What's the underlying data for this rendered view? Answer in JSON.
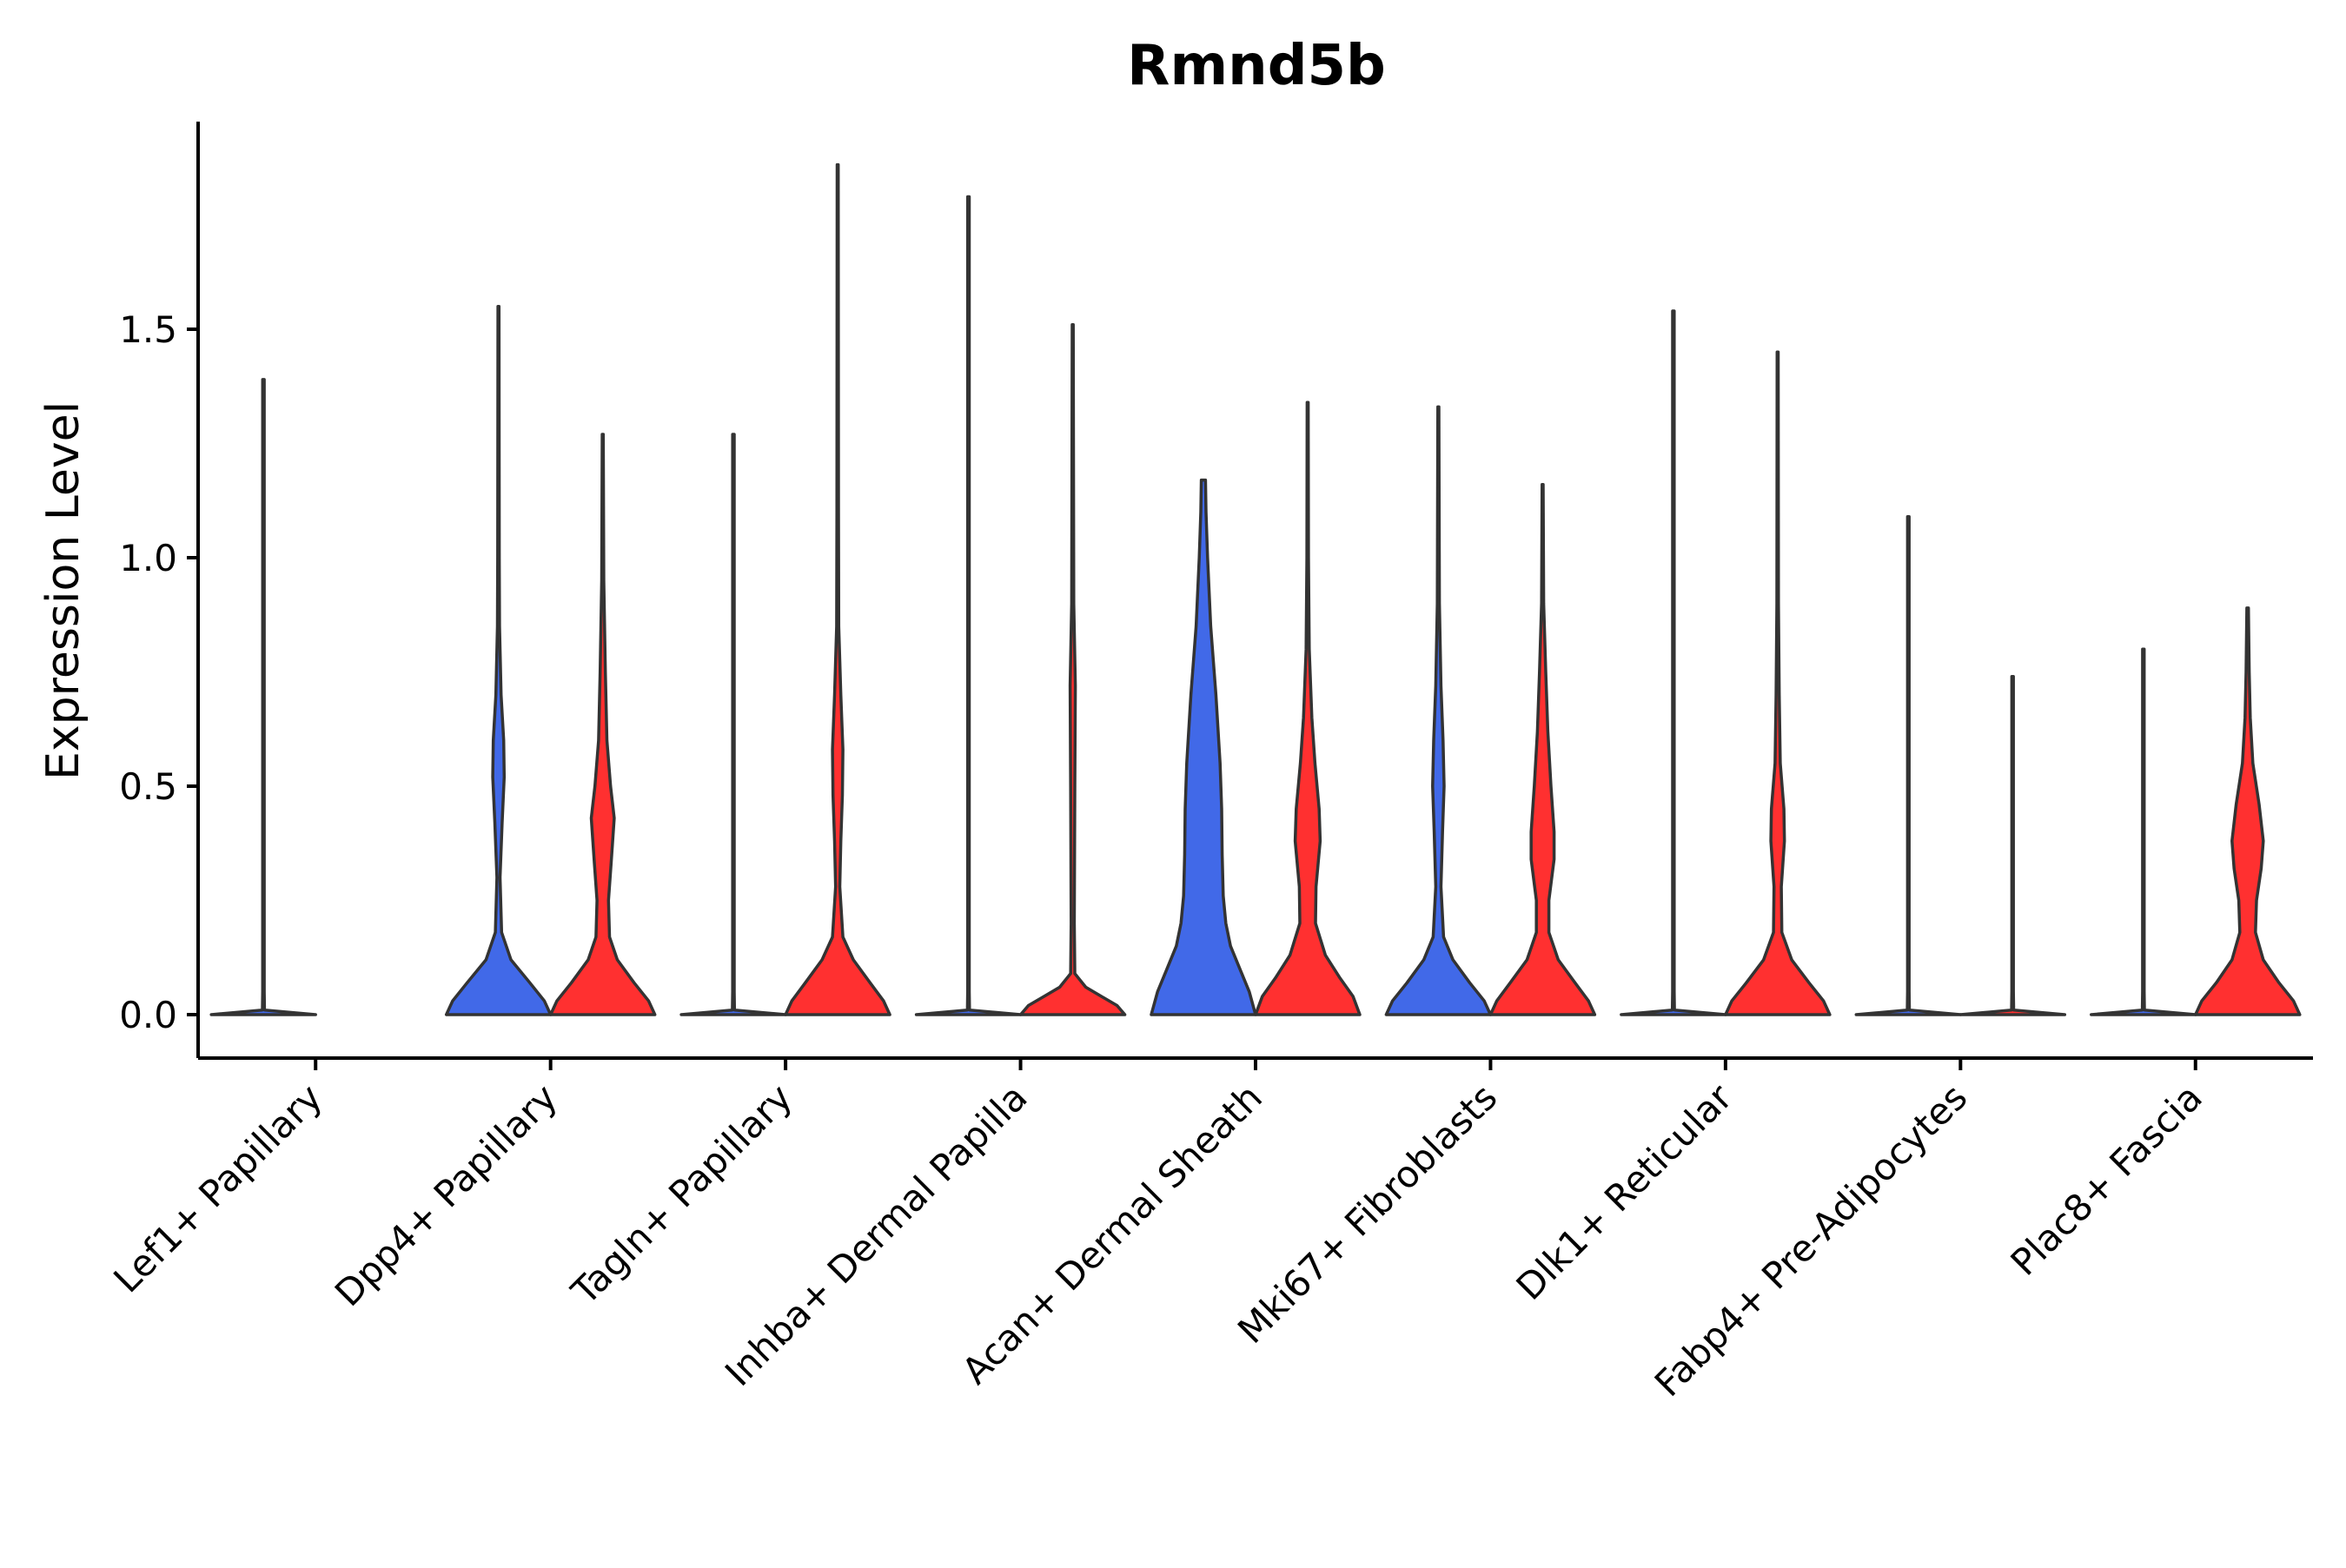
{
  "chart_data": {
    "type": "violin",
    "title": "Rmnd5b",
    "xlabel": "",
    "ylabel": "Expression Level",
    "ylim": [
      -0.09,
      1.94
    ],
    "yticks": [
      0.0,
      0.5,
      1.0,
      1.5
    ],
    "ytick_labels": [
      "0.0",
      "0.5",
      "1.0",
      "1.5"
    ],
    "colors": {
      "blue": "#4169E8",
      "red": "#FF3030"
    },
    "categories": [
      "Lef1+ Papillary",
      "Dpp4+ Papillary",
      "Tagln+ Papillary",
      "Inhba+ Dermal Papilla",
      "Acan+ Dermal Sheath",
      "Mki67+ Fibroblasts",
      "Dlk1+ Reticular",
      "Fabp4+ Pre-Adipocytes",
      "Plac8+ Fascia"
    ],
    "groups": [
      "blue",
      "red"
    ],
    "violins": [
      {
        "category": "Lef1+ Papillary",
        "group": "blue",
        "max": 1.39,
        "profile": [
          [
            0,
            1.0
          ],
          [
            0.01,
            0.02
          ],
          [
            0.05,
            0.015
          ],
          [
            1.39,
            0.015
          ]
        ]
      },
      {
        "category": "Lef1+ Papillary",
        "group": "red",
        "max": 0.0,
        "profile": []
      },
      {
        "category": "Dpp4+ Papillary",
        "group": "blue",
        "max": 1.55,
        "profile": [
          [
            0,
            1.0
          ],
          [
            0.03,
            0.88
          ],
          [
            0.07,
            0.6
          ],
          [
            0.12,
            0.24
          ],
          [
            0.18,
            0.06
          ],
          [
            0.3,
            0.03
          ],
          [
            0.42,
            0.07
          ],
          [
            0.52,
            0.11
          ],
          [
            0.6,
            0.1
          ],
          [
            0.7,
            0.05
          ],
          [
            0.85,
            0.02
          ],
          [
            1.0,
            0.015
          ],
          [
            1.55,
            0.01
          ]
        ]
      },
      {
        "category": "Dpp4+ Papillary",
        "group": "red",
        "max": 1.27,
        "profile": [
          [
            0,
            1.0
          ],
          [
            0.03,
            0.88
          ],
          [
            0.07,
            0.6
          ],
          [
            0.12,
            0.28
          ],
          [
            0.17,
            0.13
          ],
          [
            0.25,
            0.11
          ],
          [
            0.33,
            0.16
          ],
          [
            0.43,
            0.22
          ],
          [
            0.5,
            0.15
          ],
          [
            0.6,
            0.08
          ],
          [
            0.75,
            0.05
          ],
          [
            0.95,
            0.02
          ],
          [
            1.27,
            0.01
          ]
        ]
      },
      {
        "category": "Tagln+ Papillary",
        "group": "blue",
        "max": 1.27,
        "profile": [
          [
            0,
            1.0
          ],
          [
            0.01,
            0.02
          ],
          [
            0.05,
            0.015
          ],
          [
            1.27,
            0.015
          ]
        ]
      },
      {
        "category": "Tagln+ Papillary",
        "group": "red",
        "max": 1.86,
        "profile": [
          [
            0,
            1.0
          ],
          [
            0.03,
            0.88
          ],
          [
            0.07,
            0.62
          ],
          [
            0.12,
            0.3
          ],
          [
            0.17,
            0.1
          ],
          [
            0.28,
            0.04
          ],
          [
            0.38,
            0.06
          ],
          [
            0.48,
            0.09
          ],
          [
            0.58,
            0.1
          ],
          [
            0.7,
            0.06
          ],
          [
            0.85,
            0.02
          ],
          [
            1.1,
            0.015
          ],
          [
            1.86,
            0.01
          ]
        ]
      },
      {
        "category": "Inhba+ Dermal Papilla",
        "group": "blue",
        "max": 1.79,
        "profile": [
          [
            0,
            1.0
          ],
          [
            0.01,
            0.02
          ],
          [
            0.05,
            0.015
          ],
          [
            1.79,
            0.015
          ]
        ]
      },
      {
        "category": "Inhba+ Dermal Papilla",
        "group": "red",
        "max": 1.51,
        "profile": [
          [
            0,
            1.0
          ],
          [
            0.02,
            0.85
          ],
          [
            0.04,
            0.55
          ],
          [
            0.06,
            0.25
          ],
          [
            0.09,
            0.04
          ],
          [
            0.2,
            0.03
          ],
          [
            0.5,
            0.04
          ],
          [
            0.72,
            0.05
          ],
          [
            0.9,
            0.02
          ],
          [
            1.51,
            0.01
          ]
        ]
      },
      {
        "category": "Acan+ Dermal Sheath",
        "group": "blue",
        "max": 1.17,
        "profile": [
          [
            0,
            1.0
          ],
          [
            0.05,
            0.88
          ],
          [
            0.1,
            0.7
          ],
          [
            0.15,
            0.52
          ],
          [
            0.2,
            0.43
          ],
          [
            0.26,
            0.38
          ],
          [
            0.35,
            0.36
          ],
          [
            0.45,
            0.35
          ],
          [
            0.55,
            0.32
          ],
          [
            0.7,
            0.24
          ],
          [
            0.85,
            0.14
          ],
          [
            1.0,
            0.08
          ],
          [
            1.1,
            0.05
          ],
          [
            1.17,
            0.04
          ]
        ]
      },
      {
        "category": "Acan+ Dermal Sheath",
        "group": "red",
        "max": 1.34,
        "profile": [
          [
            0,
            1.0
          ],
          [
            0.04,
            0.87
          ],
          [
            0.08,
            0.62
          ],
          [
            0.13,
            0.34
          ],
          [
            0.2,
            0.15
          ],
          [
            0.28,
            0.16
          ],
          [
            0.38,
            0.24
          ],
          [
            0.45,
            0.22
          ],
          [
            0.55,
            0.14
          ],
          [
            0.65,
            0.08
          ],
          [
            0.8,
            0.03
          ],
          [
            1.0,
            0.015
          ],
          [
            1.34,
            0.01
          ]
        ]
      },
      {
        "category": "Mki67+ Fibroblasts",
        "group": "blue",
        "max": 1.33,
        "profile": [
          [
            0,
            1.0
          ],
          [
            0.03,
            0.88
          ],
          [
            0.07,
            0.6
          ],
          [
            0.12,
            0.28
          ],
          [
            0.17,
            0.1
          ],
          [
            0.28,
            0.05
          ],
          [
            0.4,
            0.08
          ],
          [
            0.5,
            0.11
          ],
          [
            0.6,
            0.09
          ],
          [
            0.72,
            0.05
          ],
          [
            0.9,
            0.02
          ],
          [
            1.33,
            0.01
          ]
        ]
      },
      {
        "category": "Mki67+ Fibroblasts",
        "group": "red",
        "max": 1.16,
        "profile": [
          [
            0,
            1.0
          ],
          [
            0.03,
            0.88
          ],
          [
            0.07,
            0.62
          ],
          [
            0.12,
            0.3
          ],
          [
            0.18,
            0.12
          ],
          [
            0.25,
            0.12
          ],
          [
            0.34,
            0.22
          ],
          [
            0.4,
            0.22
          ],
          [
            0.5,
            0.16
          ],
          [
            0.62,
            0.1
          ],
          [
            0.75,
            0.06
          ],
          [
            0.9,
            0.02
          ],
          [
            1.16,
            0.01
          ]
        ]
      },
      {
        "category": "Dlk1+ Reticular",
        "group": "blue",
        "max": 1.54,
        "profile": [
          [
            0,
            1.0
          ],
          [
            0.01,
            0.02
          ],
          [
            0.05,
            0.015
          ],
          [
            1.54,
            0.015
          ]
        ]
      },
      {
        "category": "Dlk1+ Reticular",
        "group": "red",
        "max": 1.45,
        "profile": [
          [
            0,
            1.0
          ],
          [
            0.03,
            0.88
          ],
          [
            0.07,
            0.6
          ],
          [
            0.12,
            0.27
          ],
          [
            0.18,
            0.08
          ],
          [
            0.28,
            0.07
          ],
          [
            0.38,
            0.13
          ],
          [
            0.45,
            0.12
          ],
          [
            0.55,
            0.05
          ],
          [
            0.7,
            0.03
          ],
          [
            0.9,
            0.015
          ],
          [
            1.45,
            0.01
          ]
        ]
      },
      {
        "category": "Fabp4+ Pre-Adipocytes",
        "group": "blue",
        "max": 1.09,
        "profile": [
          [
            0,
            1.0
          ],
          [
            0.01,
            0.02
          ],
          [
            0.05,
            0.015
          ],
          [
            1.09,
            0.015
          ]
        ]
      },
      {
        "category": "Fabp4+ Pre-Adipocytes",
        "group": "red",
        "max": 0.74,
        "profile": [
          [
            0,
            1.0
          ],
          [
            0.01,
            0.02
          ],
          [
            0.05,
            0.015
          ],
          [
            0.74,
            0.015
          ]
        ]
      },
      {
        "category": "Plac8+ Fascia",
        "group": "blue",
        "max": 0.8,
        "profile": [
          [
            0,
            1.0
          ],
          [
            0.01,
            0.02
          ],
          [
            0.05,
            0.015
          ],
          [
            0.8,
            0.015
          ]
        ]
      },
      {
        "category": "Plac8+ Fascia",
        "group": "red",
        "max": 0.89,
        "profile": [
          [
            0,
            1.0
          ],
          [
            0.03,
            0.88
          ],
          [
            0.07,
            0.6
          ],
          [
            0.12,
            0.3
          ],
          [
            0.18,
            0.15
          ],
          [
            0.25,
            0.17
          ],
          [
            0.32,
            0.26
          ],
          [
            0.38,
            0.3
          ],
          [
            0.46,
            0.22
          ],
          [
            0.55,
            0.1
          ],
          [
            0.65,
            0.05
          ],
          [
            0.75,
            0.03
          ],
          [
            0.89,
            0.015
          ]
        ]
      }
    ]
  }
}
